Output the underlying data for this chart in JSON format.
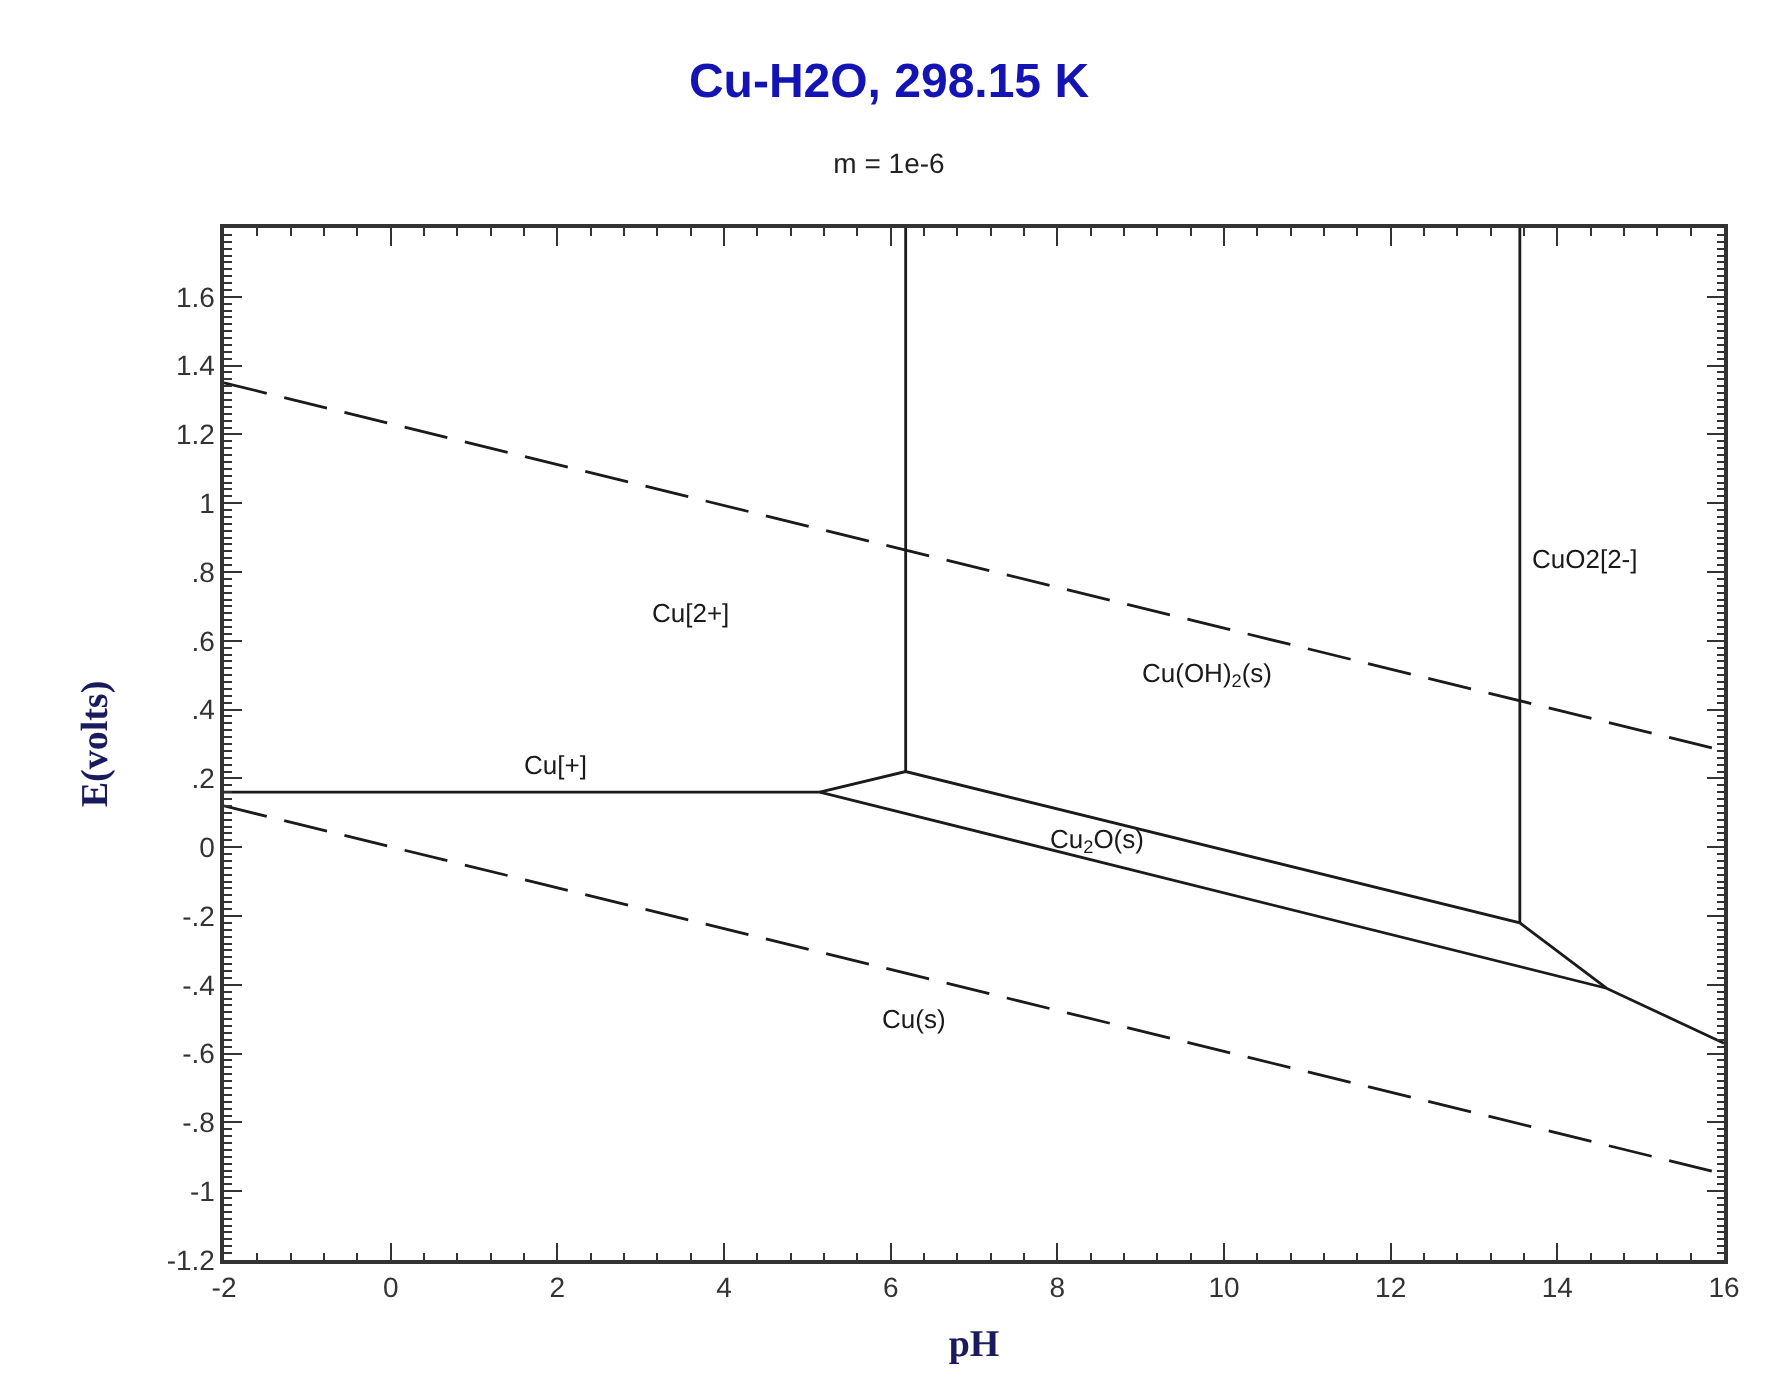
{
  "chart_data": {
    "type": "line",
    "title": "Cu-H2O, 298.15 K",
    "subtitle": "m = 1e-6",
    "xlabel": "pH",
    "ylabel": "E(volts)",
    "xlim": [
      -2,
      16
    ],
    "xticks": [
      -2,
      0,
      2,
      4,
      6,
      8,
      10,
      12,
      14,
      16
    ],
    "ylim": [
      -1.2,
      1.8
    ],
    "yticks": [
      -1.2,
      -1,
      {
        "value": -0.8,
        "label": "-.8"
      },
      {
        "value": -0.6,
        "label": "-.6"
      },
      {
        "value": -0.4,
        "label": "-.4"
      },
      {
        "value": -0.2,
        "label": "-.2"
      },
      0,
      {
        "value": 0.2,
        "label": ".2"
      },
      {
        "value": 0.4,
        "label": ".4"
      },
      {
        "value": 0.6,
        "label": ".6"
      },
      {
        "value": 0.8,
        "label": ".8"
      },
      1,
      1.2,
      1.4,
      1.6
    ],
    "series": [
      {
        "color": "#1a1a1a",
        "line_style": "solid",
        "x": [
          -2,
          5.15,
          14.59,
          16
        ],
        "values": [
          0.16,
          0.16,
          -0.41,
          -0.57
        ]
      },
      {
        "color": "#1a1a1a",
        "line_style": "solid",
        "x": [
          5.15,
          6.18,
          13.55,
          14.59
        ],
        "values": [
          0.16,
          0.22,
          -0.22,
          -0.41
        ]
      },
      {
        "color": "#1a1a1a",
        "line_style": "solid",
        "x": [
          6.18,
          6.18
        ],
        "values": [
          0.22,
          1.8
        ]
      },
      {
        "color": "#1a1a1a",
        "line_style": "solid",
        "x": [
          13.55,
          13.55
        ],
        "values": [
          -0.22,
          1.8
        ]
      },
      {
        "color": "#1a1a1a",
        "line_style": "dashed",
        "x": [
          -2,
          16
        ],
        "values": [
          1.35,
          0.28
        ]
      },
      {
        "color": "#1a1a1a",
        "line_style": "dashed",
        "x": [
          -2,
          16
        ],
        "values": [
          0.12,
          -0.95
        ]
      }
    ],
    "annotations": [
      "Cu[2+]",
      "Cu[+]",
      "Cu(OH)$_{2}$(s)",
      "CuO2[2-]",
      "Cu$_{2}$O(s)",
      "Cu(s)"
    ]
  }
}
